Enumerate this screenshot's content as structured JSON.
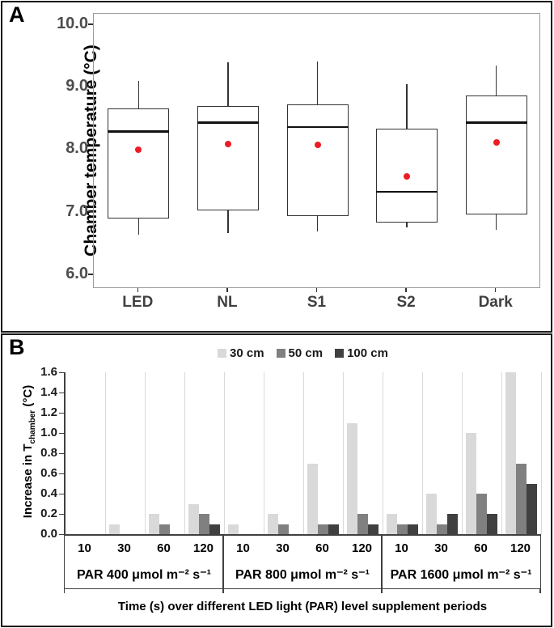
{
  "figure": {
    "panel_a_label": "A",
    "panel_b_label": "B"
  },
  "chart_data": [
    {
      "type": "box",
      "panel_label": "A",
      "ylabel": "Chamber temperature (°C)",
      "categories": [
        "LED",
        "NL",
        "S1",
        "S2",
        "Dark"
      ],
      "yticks": [
        "10.0",
        "9.0",
        "8.0",
        "7.0",
        "6.0"
      ],
      "ytick_values": [
        10.0,
        9.0,
        8.0,
        7.0,
        6.0
      ],
      "ylim": [
        5.78,
        10.18
      ],
      "grid": false,
      "box_fill": "#ffffff",
      "box_stroke": "#333333",
      "median_color": "#111111",
      "mean_marker_color": "#ed1c24",
      "boxes": [
        {
          "category": "LED",
          "whisker_low": 6.65,
          "q1": 6.9,
          "median": 8.3,
          "q3": 8.67,
          "whisker_high": 9.1,
          "mean": 8.0
        },
        {
          "category": "NL",
          "whisker_low": 6.67,
          "q1": 7.03,
          "median": 8.44,
          "q3": 8.71,
          "whisker_high": 9.4,
          "mean": 8.1
        },
        {
          "category": "S1",
          "whisker_low": 6.7,
          "q1": 6.95,
          "median": 8.37,
          "q3": 8.73,
          "whisker_high": 9.42,
          "mean": 8.08
        },
        {
          "category": "S2",
          "whisker_low": 6.76,
          "q1": 6.84,
          "median": 7.33,
          "q3": 8.34,
          "whisker_high": 9.05,
          "mean": 7.58
        },
        {
          "category": "Dark",
          "whisker_low": 6.73,
          "q1": 6.97,
          "median": 8.44,
          "q3": 8.87,
          "whisker_high": 9.35,
          "mean": 8.12
        }
      ]
    },
    {
      "type": "bar",
      "panel_label": "B",
      "ylabel_prefix": "Increase in T",
      "ylabel_sub": "chamber",
      "ylabel_suffix": " (°C)",
      "xlabel": "Time (s) over different LED light (PAR) level supplement periods",
      "ylim": [
        0,
        1.6
      ],
      "yticks": [
        "0.0",
        "0.2",
        "0.4",
        "0.6",
        "0.8",
        "1.0",
        "1.2",
        "1.4",
        "1.6"
      ],
      "ytick_values": [
        0.0,
        0.2,
        0.4,
        0.6,
        0.8,
        1.0,
        1.2,
        1.4,
        1.6
      ],
      "grid": "vertical-category-separators",
      "gridline_color": "#d9d9d9",
      "axis_color": "#404040",
      "legend_position": "top",
      "time_labels": [
        "10",
        "30",
        "60",
        "120",
        "10",
        "30",
        "60",
        "120",
        "10",
        "30",
        "60",
        "120"
      ],
      "group_labels": [
        "PAR 400 μmol m⁻² s⁻¹",
        "PAR 800 μmol m⁻² s⁻¹",
        "PAR 1600 μmol m⁻² s⁻¹"
      ],
      "series": [
        {
          "name": "30 cm",
          "color": "#d9d9d9",
          "values": [
            0,
            0.1,
            0.2,
            0.3,
            0.1,
            0.2,
            0.7,
            1.1,
            0.2,
            0.4,
            1.0,
            1.6
          ]
        },
        {
          "name": "50 cm",
          "color": "#808080",
          "values": [
            0,
            0,
            0.1,
            0.2,
            0,
            0.1,
            0.1,
            0.2,
            0.1,
            0.1,
            0.4,
            0.7
          ]
        },
        {
          "name": "100 cm",
          "color": "#404040",
          "values": [
            0,
            0,
            0,
            0.1,
            0,
            0,
            0.1,
            0.1,
            0.1,
            0.2,
            0.2,
            0.5
          ]
        }
      ]
    }
  ]
}
